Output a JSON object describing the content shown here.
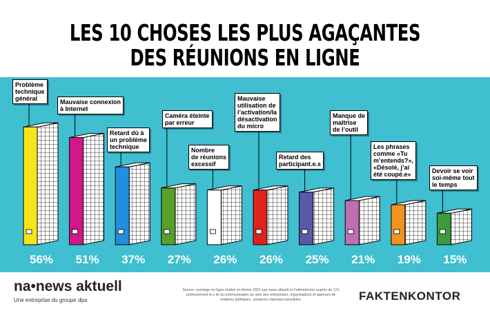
{
  "chart_data": {
    "type": "bar",
    "title": "LES 10 CHOSES LES PLUS AGAÇANTES\nDES RÉUNIONS EN LIGNE",
    "categories": [
      "Problème\ntechnique\ngénéral",
      "Mauvaise connexion\nà Internet",
      "Retard dû à\nun problème\ntechnique",
      "Caméra éteinte\npar erreur",
      "Nombre\nde réunions\nexcessif",
      "Mauvaise\nutilisation de\nl’activation/la\ndésactivation\ndu micro",
      "Retard des\nparticipant.e.s",
      "Manque de\nmaîtrise\nde l’outil",
      "Les phrases\ncomme «Tu\nm’entends?»,\n«Désolé, j’ai\nété coupé.e»",
      "Devoir se voir\nsoi-même tout\nle temps"
    ],
    "values": [
      56,
      51,
      37,
      27,
      26,
      26,
      25,
      21,
      19,
      15
    ],
    "value_labels": [
      "56%",
      "51%",
      "37%",
      "27%",
      "26%",
      "26%",
      "25%",
      "21%",
      "19%",
      "15%"
    ],
    "colors": [
      "#f4e61a",
      "#d3168a",
      "#1f8fe0",
      "#58a02a",
      "#ffffff",
      "#e0221f",
      "#5a58a8",
      "#bf6fb0",
      "#f2921f",
      "#3a9b3c"
    ],
    "background": "#3fbfd0"
  },
  "footer": {
    "logo": "na•news aktuell",
    "logo_subtitle": "Une entreprise du groupe dpa",
    "source": "Source: sondage en ligne réalisé en février 2021 par news aktuell et Faktenkontor auprès de 121 professionnel.le.s de la communication au sein des entreprises, organisations et agences de relations publiques ; plusieurs réponses possibles.",
    "brand": "FAKTENKONTOR"
  }
}
